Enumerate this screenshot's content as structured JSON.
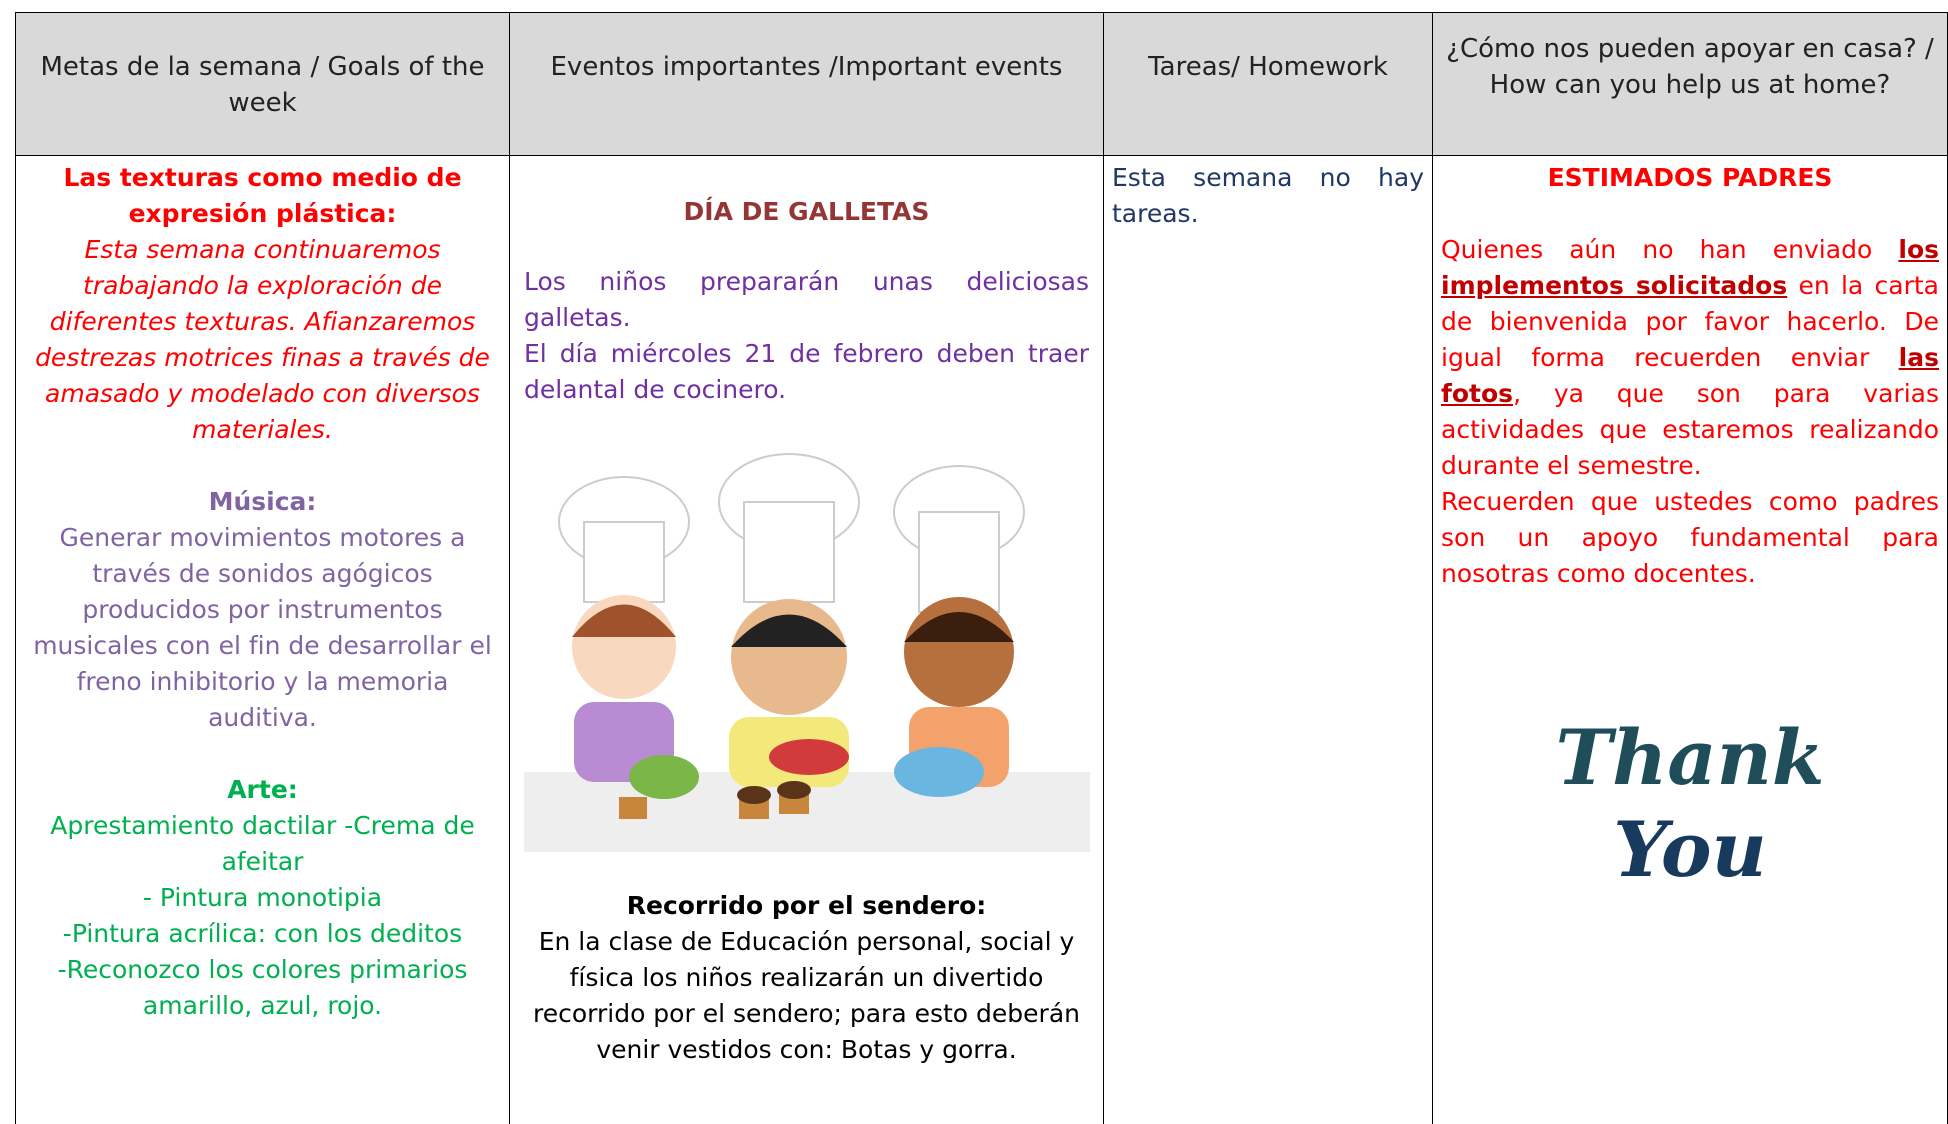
{
  "header": [
    "Metas de la semana / Goals of the week",
    "Eventos importantes /Important events",
    "Tareas/ Homework",
    "¿Cómo nos pueden apoyar en casa? / How can you help us at home?"
  ],
  "goals": {
    "textures_title": "Las texturas como medio de expresión plástica:",
    "textures_text": "Esta semana continuaremos trabajando la exploración de diferentes texturas. Afianzaremos destrezas motrices finas a través de amasado y modelado con diversos materiales.",
    "music_title": "Música:",
    "music_text": "Generar movimientos motores a través de sonidos agógicos producidos por instrumentos musicales con el fin de desarrollar el freno inhibitorio y la memoria auditiva.",
    "art_title": "Arte:",
    "art_lines": [
      "Apresta­miento dactilar -Crema de afeitar",
      "- Pintura monotipia",
      "-Pintura acrílica:  con los deditos",
      "-Reconozco los colores primarios amarillo, azul, rojo."
    ]
  },
  "events": {
    "title": "DÍA DE GALLETAS",
    "lines": [
      "Los niños prepararán unas deliciosas galletas.",
      "El día miércoles 21 de febrero deben traer delantal de cocinero."
    ],
    "walk_title": "Recorrido por el sendero:",
    "walk_text": "En la clase de Educación personal, social y física los niños realizarán un divertido recorrido por el sendero; para esto deberán venir vestidos con: Botas y gorra."
  },
  "homework": {
    "text": "Esta semana no hay tareas."
  },
  "support": {
    "title": "ESTIMADOS PADRES",
    "p1": [
      "Quienes aún no han enviado",
      "los implementos solicitados",
      "en la carta de bienvenida por favor hacerlo. De igual forma recuerden enviar",
      "las fotos",
      ", ya que son para varias actividades que estaremos realizando durante el semestre."
    ],
    "p2": "Recuerden que ustedes como padres son un apoyo fundamental para nosotras como docentes.",
    "thanks": [
      "Thank",
      "You"
    ]
  }
}
